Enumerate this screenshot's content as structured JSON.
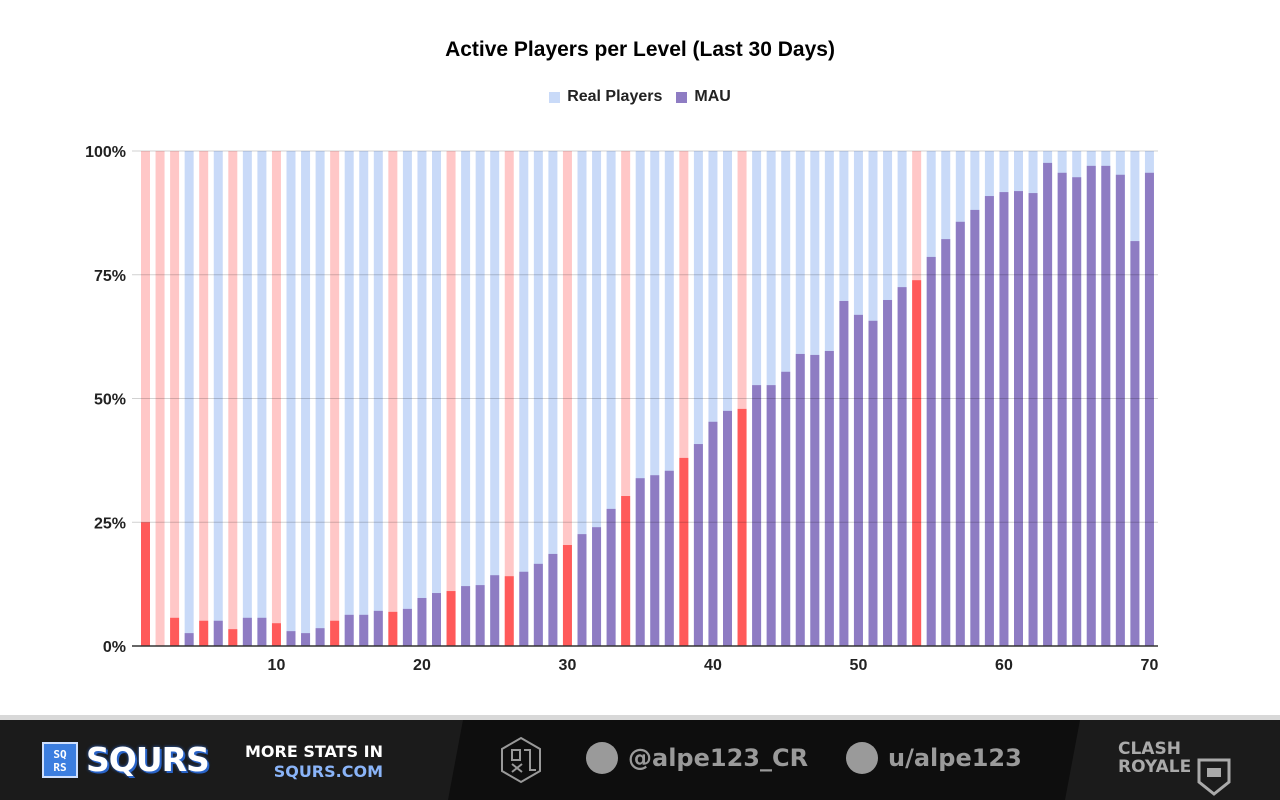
{
  "chart_data": {
    "type": "bar",
    "stacked": "percent",
    "title": "Active Players per Level (Last 30 Days)",
    "legend_position": "top",
    "series": [
      {
        "name": "Real Players",
        "color": "#c9daf8"
      },
      {
        "name": "MAU",
        "color": "#8e7cc3"
      }
    ],
    "highlight_colors": {
      "bar": "#ff5a5a",
      "background": "#ffc7c7"
    },
    "highlighted_levels": [
      1,
      2,
      3,
      5,
      7,
      10,
      14,
      18,
      22,
      26,
      30,
      34,
      38,
      42,
      54
    ],
    "x": [
      1,
      2,
      3,
      4,
      5,
      6,
      7,
      8,
      9,
      10,
      11,
      12,
      13,
      14,
      15,
      16,
      17,
      18,
      19,
      20,
      21,
      22,
      23,
      24,
      25,
      26,
      27,
      28,
      29,
      30,
      31,
      32,
      33,
      34,
      35,
      36,
      37,
      38,
      39,
      40,
      41,
      42,
      43,
      44,
      45,
      46,
      47,
      48,
      49,
      50,
      51,
      52,
      53,
      54,
      55,
      56,
      57,
      58,
      59,
      60,
      61,
      62,
      63,
      64,
      65,
      66,
      67,
      68,
      69,
      70
    ],
    "mau_percent": [
      25.0,
      0.0,
      5.7,
      2.6,
      5.1,
      5.1,
      3.4,
      5.7,
      5.7,
      4.6,
      3.0,
      2.6,
      3.6,
      5.1,
      6.3,
      6.3,
      7.1,
      6.9,
      7.5,
      9.7,
      10.7,
      11.1,
      12.1,
      12.3,
      14.3,
      14.1,
      15.0,
      16.6,
      18.6,
      20.4,
      22.6,
      24.0,
      27.7,
      30.3,
      33.9,
      34.5,
      35.4,
      38.0,
      40.8,
      45.3,
      47.5,
      47.9,
      52.7,
      52.7,
      55.4,
      59.0,
      58.8,
      59.6,
      69.7,
      66.9,
      65.7,
      69.9,
      72.5,
      73.9,
      78.6,
      82.2,
      85.7,
      88.1,
      90.9,
      91.7,
      91.9,
      91.5,
      97.6,
      95.6,
      94.7,
      97.0,
      97.0,
      95.2,
      81.8,
      95.6
    ],
    "ylim": [
      0,
      100
    ],
    "y_ticks": [
      "0%",
      "25%",
      "50%",
      "75%",
      "100%"
    ],
    "x_ticks": [
      "10",
      "20",
      "30",
      "40",
      "50",
      "60",
      "70"
    ],
    "grid": true
  },
  "footer": {
    "brand": "SQURS",
    "brand_box": "SQ RS",
    "more_stats": "MORE STATS IN",
    "site": "SQURS.COM",
    "twitter": "@alpe123_CR",
    "reddit": "u/alpe123",
    "game_logo": "CLASH ROYALE"
  }
}
